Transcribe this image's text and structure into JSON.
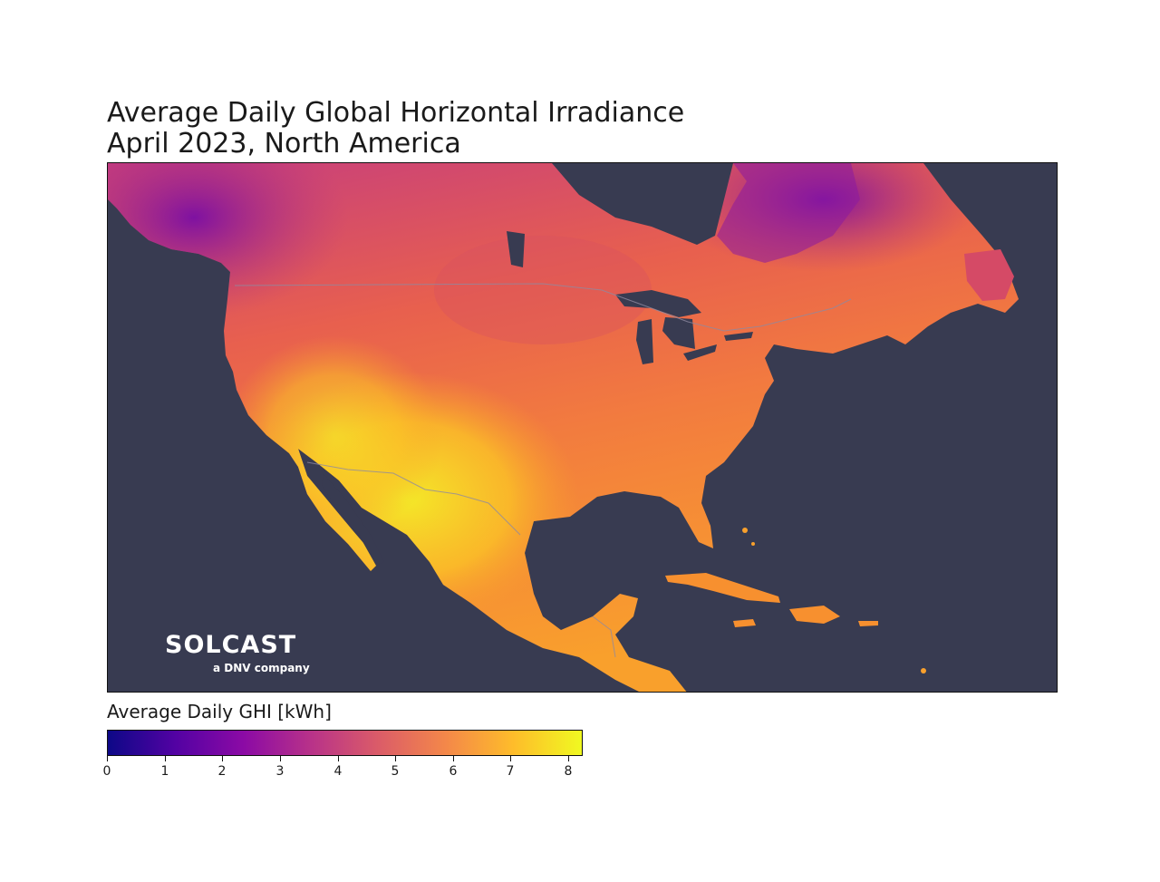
{
  "title_line1": "Average Daily Global Horizontal Irradiance",
  "title_line2": "April 2023, North America",
  "colors": {
    "ocean": "#383b51",
    "colormap": [
      "#0d0887",
      "#5302a3",
      "#8b0aa5",
      "#b83289",
      "#db5c68",
      "#f48849",
      "#febd2a",
      "#f0f921"
    ]
  },
  "logo": {
    "wordmark": "SOLCAST",
    "subtitle": "a DNV company"
  },
  "legend": {
    "label": "Average Daily GHI [kWh]",
    "min": 0,
    "max": 8.25,
    "ticks": [
      "0",
      "1",
      "2",
      "3",
      "4",
      "5",
      "6",
      "7",
      "8"
    ]
  }
}
